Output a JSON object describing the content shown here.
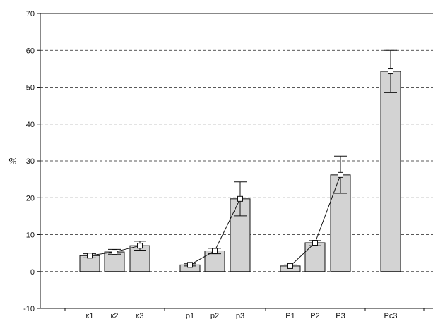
{
  "chart_data": {
    "type": "bar",
    "title": "",
    "xlabel": "",
    "ylabel": "%",
    "ylim": [
      -10,
      70
    ],
    "yticks": [
      -10,
      0,
      10,
      20,
      30,
      40,
      50,
      60,
      70
    ],
    "grid": "horizontal dashed",
    "bar_color": "#d3d3d3",
    "groups": [
      {
        "bars": [
          {
            "label": "к1",
            "value": 4.3,
            "err_low": 3.7,
            "err_high": 4.8
          },
          {
            "label": "к2",
            "value": 5.3,
            "err_low": 4.7,
            "err_high": 6.0
          },
          {
            "label": "к3",
            "value": 7.0,
            "err_low": 5.8,
            "err_high": 8.2
          }
        ],
        "connected": true
      },
      {
        "bars": [
          {
            "label": "р1",
            "value": 1.8,
            "err_low": 1.5,
            "err_high": 2.1
          },
          {
            "label": "р2",
            "value": 5.6,
            "err_low": 4.8,
            "err_high": 6.3
          },
          {
            "label": "р3",
            "value": 19.7,
            "err_low": 15.1,
            "err_high": 24.3
          }
        ],
        "connected": true
      },
      {
        "bars": [
          {
            "label": "Р1",
            "value": 1.5,
            "err_low": 1.2,
            "err_high": 1.8
          },
          {
            "label": "Р2",
            "value": 7.8,
            "err_low": 7.0,
            "err_high": 8.4
          },
          {
            "label": "Р3",
            "value": 26.2,
            "err_low": 21.2,
            "err_high": 31.3
          }
        ],
        "connected": true
      },
      {
        "bars": [
          {
            "label": "Рс3",
            "value": 54.3,
            "err_low": 48.5,
            "err_high": 60.0
          }
        ],
        "connected": false
      }
    ]
  }
}
